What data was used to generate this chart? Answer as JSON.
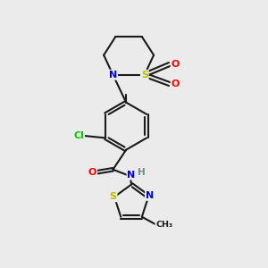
{
  "bg_color": "#ebebeb",
  "bond_color": "#1a1a1a",
  "bond_width": 1.5,
  "dbo": 0.06,
  "figsize": [
    3.0,
    3.0
  ],
  "dpi": 100,
  "atom_colors": {
    "N": "#0000ee",
    "S": "#bbbb00",
    "O": "#ff0000",
    "Cl": "#00cc00",
    "C": "#1a1a1a",
    "H": "#778888"
  },
  "afs": 8.0
}
